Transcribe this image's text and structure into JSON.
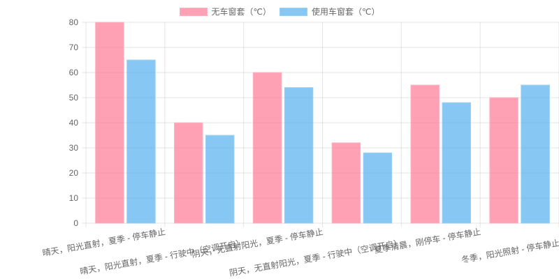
{
  "chart_data": {
    "type": "bar",
    "title": "",
    "xlabel": "",
    "ylabel": "",
    "ylim": [
      0,
      80
    ],
    "yticks": [
      0,
      10,
      20,
      30,
      40,
      50,
      60,
      70,
      80
    ],
    "grid": true,
    "legend_position": "top",
    "categories": [
      "晴天，阳光直射，夏季 - 停车静止",
      "晴天，阳光直射，夏季 - 行驶中（空调开启）",
      "阴天，无直射阳光，夏季 - 停车静止",
      "阴天，无直射阳光，夏季 - 行驶中（空调开启）",
      "夏季清晨，刚停车 - 停车静止",
      "冬季，阳光照射 - 停车静止"
    ],
    "series": [
      {
        "name": "无车窗套（℃）",
        "color": "#ff6384",
        "values": [
          80,
          40,
          60,
          32,
          55,
          50
        ]
      },
      {
        "name": "使用车窗套（℃）",
        "color": "#36a2eb",
        "values": [
          65,
          35,
          54,
          28,
          48,
          55
        ]
      }
    ]
  },
  "legend": {
    "items": [
      {
        "label": "无车窗套（℃）",
        "fill": "rgba(255,99,132,0.6)",
        "border": "#ffb1c1"
      },
      {
        "label": "使用车窗套（℃）",
        "fill": "rgba(54,162,235,0.6)",
        "border": "#9ad0f5"
      }
    ]
  }
}
